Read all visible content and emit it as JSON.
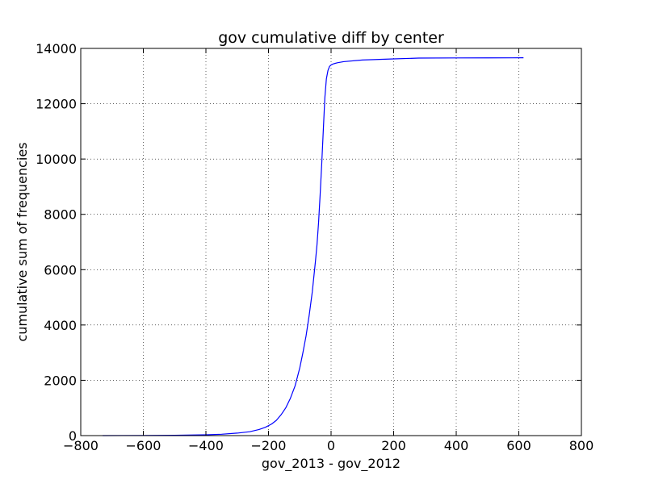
{
  "chart_data": {
    "type": "line",
    "title": "gov cumulative diff by center",
    "xlabel": "gov_2013 - gov_2012",
    "ylabel": "cumulative sum of frequencies",
    "xlim": [
      -800,
      800
    ],
    "ylim": [
      0,
      14000
    ],
    "xticks": [
      -800,
      -600,
      -400,
      -200,
      0,
      200,
      400,
      600,
      800
    ],
    "yticks": [
      0,
      2000,
      4000,
      6000,
      8000,
      10000,
      12000,
      14000
    ],
    "xtick_labels": [
      "−800",
      "−600",
      "−400",
      "−200",
      "0",
      "200",
      "400",
      "600",
      "800"
    ],
    "ytick_labels": [
      "0",
      "2000",
      "4000",
      "6000",
      "8000",
      "10000",
      "12000",
      "14000"
    ],
    "grid": true,
    "series": [
      {
        "color": "#0000ff",
        "x": [
          -730,
          -600,
          -500,
          -400,
          -350,
          -300,
          -260,
          -230,
          -210,
          -190,
          -175,
          -160,
          -145,
          -130,
          -115,
          -100,
          -90,
          -80,
          -70,
          -60,
          -50,
          -45,
          -40,
          -35,
          -30,
          -25,
          -20,
          -15,
          -10,
          -5,
          0,
          5,
          10,
          20,
          40,
          100,
          200,
          280,
          400,
          500,
          615
        ],
        "y": [
          0,
          5,
          10,
          30,
          50,
          90,
          140,
          220,
          300,
          420,
          550,
          750,
          1000,
          1350,
          1800,
          2450,
          3000,
          3600,
          4350,
          5200,
          6300,
          6900,
          7700,
          8700,
          9800,
          11000,
          12200,
          12900,
          13200,
          13350,
          13400,
          13430,
          13450,
          13480,
          13520,
          13580,
          13620,
          13650,
          13655,
          13658,
          13660
        ]
      }
    ]
  }
}
